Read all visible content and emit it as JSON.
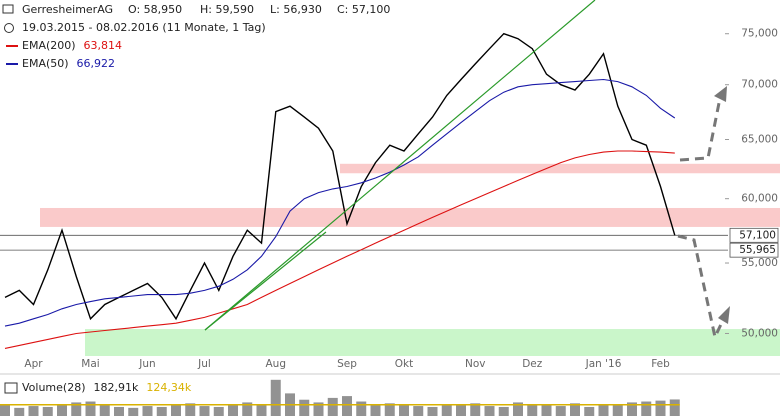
{
  "chart_data": {
    "type": "line",
    "title": "GerresheimerAG",
    "ohlc": [
      "O: 58,950",
      "H: 59,590",
      "L: 56,930",
      "C: 57,100"
    ],
    "subtitle": "19.03.2015 - 08.02.2016 (11 Monate, 1 Tag)",
    "log_scale": true,
    "ylim": [
      48500,
      78500
    ],
    "yticks": [
      {
        "value": 50000,
        "label": "50,000"
      },
      {
        "value": 55000,
        "label": "55,000"
      },
      {
        "value": 60000,
        "label": "60,000"
      },
      {
        "value": 65000,
        "label": "65,000"
      },
      {
        "value": 70000,
        "label": "70,000"
      },
      {
        "value": 75000,
        "label": "75,000"
      }
    ],
    "categories": [
      null,
      null,
      "Apr",
      null,
      null,
      null,
      "Mai",
      null,
      null,
      null,
      "Jun",
      null,
      null,
      null,
      "Jul",
      null,
      null,
      null,
      null,
      "Aug",
      null,
      null,
      null,
      null,
      "Sep",
      null,
      null,
      null,
      "Okt",
      null,
      null,
      null,
      null,
      "Nov",
      null,
      null,
      null,
      "Dez",
      null,
      null,
      null,
      null,
      "Jan '16",
      null,
      null,
      null,
      "Feb",
      null
    ],
    "series": [
      {
        "name": "Close",
        "color": "#000000",
        "values": [
          52500,
          53000,
          52000,
          54500,
          57500,
          54000,
          51000,
          52000,
          52500,
          53000,
          53500,
          52500,
          51000,
          53000,
          55000,
          53000,
          55500,
          57500,
          56500,
          67500,
          68000,
          67000,
          66000,
          64000,
          58000,
          61000,
          63000,
          64500,
          64000,
          65500,
          67000,
          69000,
          70500,
          72000,
          73500,
          75000,
          74500,
          73500,
          71000,
          70000,
          69500,
          71000,
          73000,
          68000,
          65000,
          64500,
          61000,
          57100
        ]
      },
      {
        "name": "EMA(200)",
        "color": "#dd1111",
        "last_label": "63,814",
        "values": [
          49000,
          49200,
          49400,
          49600,
          49800,
          50000,
          50100,
          50200,
          50300,
          50400,
          50500,
          50600,
          50700,
          50900,
          51100,
          51400,
          51700,
          52000,
          52500,
          53000,
          53500,
          54000,
          54500,
          55000,
          55500,
          56000,
          56500,
          57000,
          57500,
          58000,
          58500,
          59000,
          59500,
          60000,
          60500,
          61000,
          61500,
          62000,
          62500,
          63000,
          63400,
          63700,
          63900,
          64000,
          64000,
          63950,
          63900,
          63814
        ]
      },
      {
        "name": "EMA(50)",
        "color": "#1a1aa8",
        "last_label": "66,922",
        "values": [
          50500,
          50700,
          51000,
          51300,
          51700,
          52000,
          52200,
          52400,
          52500,
          52600,
          52700,
          52700,
          52700,
          52800,
          53000,
          53300,
          53800,
          54500,
          55500,
          57000,
          59000,
          60000,
          60500,
          60800,
          61000,
          61300,
          61700,
          62200,
          62800,
          63500,
          64500,
          65500,
          66500,
          67500,
          68500,
          69300,
          69800,
          70000,
          70100,
          70200,
          70300,
          70400,
          70500,
          70300,
          69800,
          69000,
          67800,
          66922
        ]
      }
    ],
    "levels": [
      {
        "value": 57100,
        "label": "57,100"
      },
      {
        "value": 55965,
        "label": "55,965"
      }
    ],
    "zones": [
      {
        "low": 62100,
        "high": 62900,
        "color": "#f9c4c4"
      },
      {
        "low": 57750,
        "high": 59250,
        "color": "#f9c4c4"
      },
      {
        "low": 48500,
        "high": 50300,
        "color": "#c4f5c4"
      }
    ],
    "volume": {
      "name": "Volume(28)",
      "last_label": "182,91k",
      "avg": 124.34,
      "avg_label": "124,34k",
      "avg_color": "#d9b200",
      "ylim": [
        0,
        420
      ],
      "values": [
        120,
        90,
        110,
        100,
        130,
        150,
        160,
        120,
        100,
        90,
        110,
        100,
        120,
        140,
        110,
        100,
        130,
        150,
        120,
        400,
        250,
        180,
        150,
        200,
        220,
        160,
        130,
        140,
        120,
        110,
        100,
        130,
        120,
        140,
        110,
        100,
        150,
        130,
        120,
        110,
        140,
        100,
        120,
        130,
        150,
        160,
        170,
        182.91
      ]
    }
  }
}
